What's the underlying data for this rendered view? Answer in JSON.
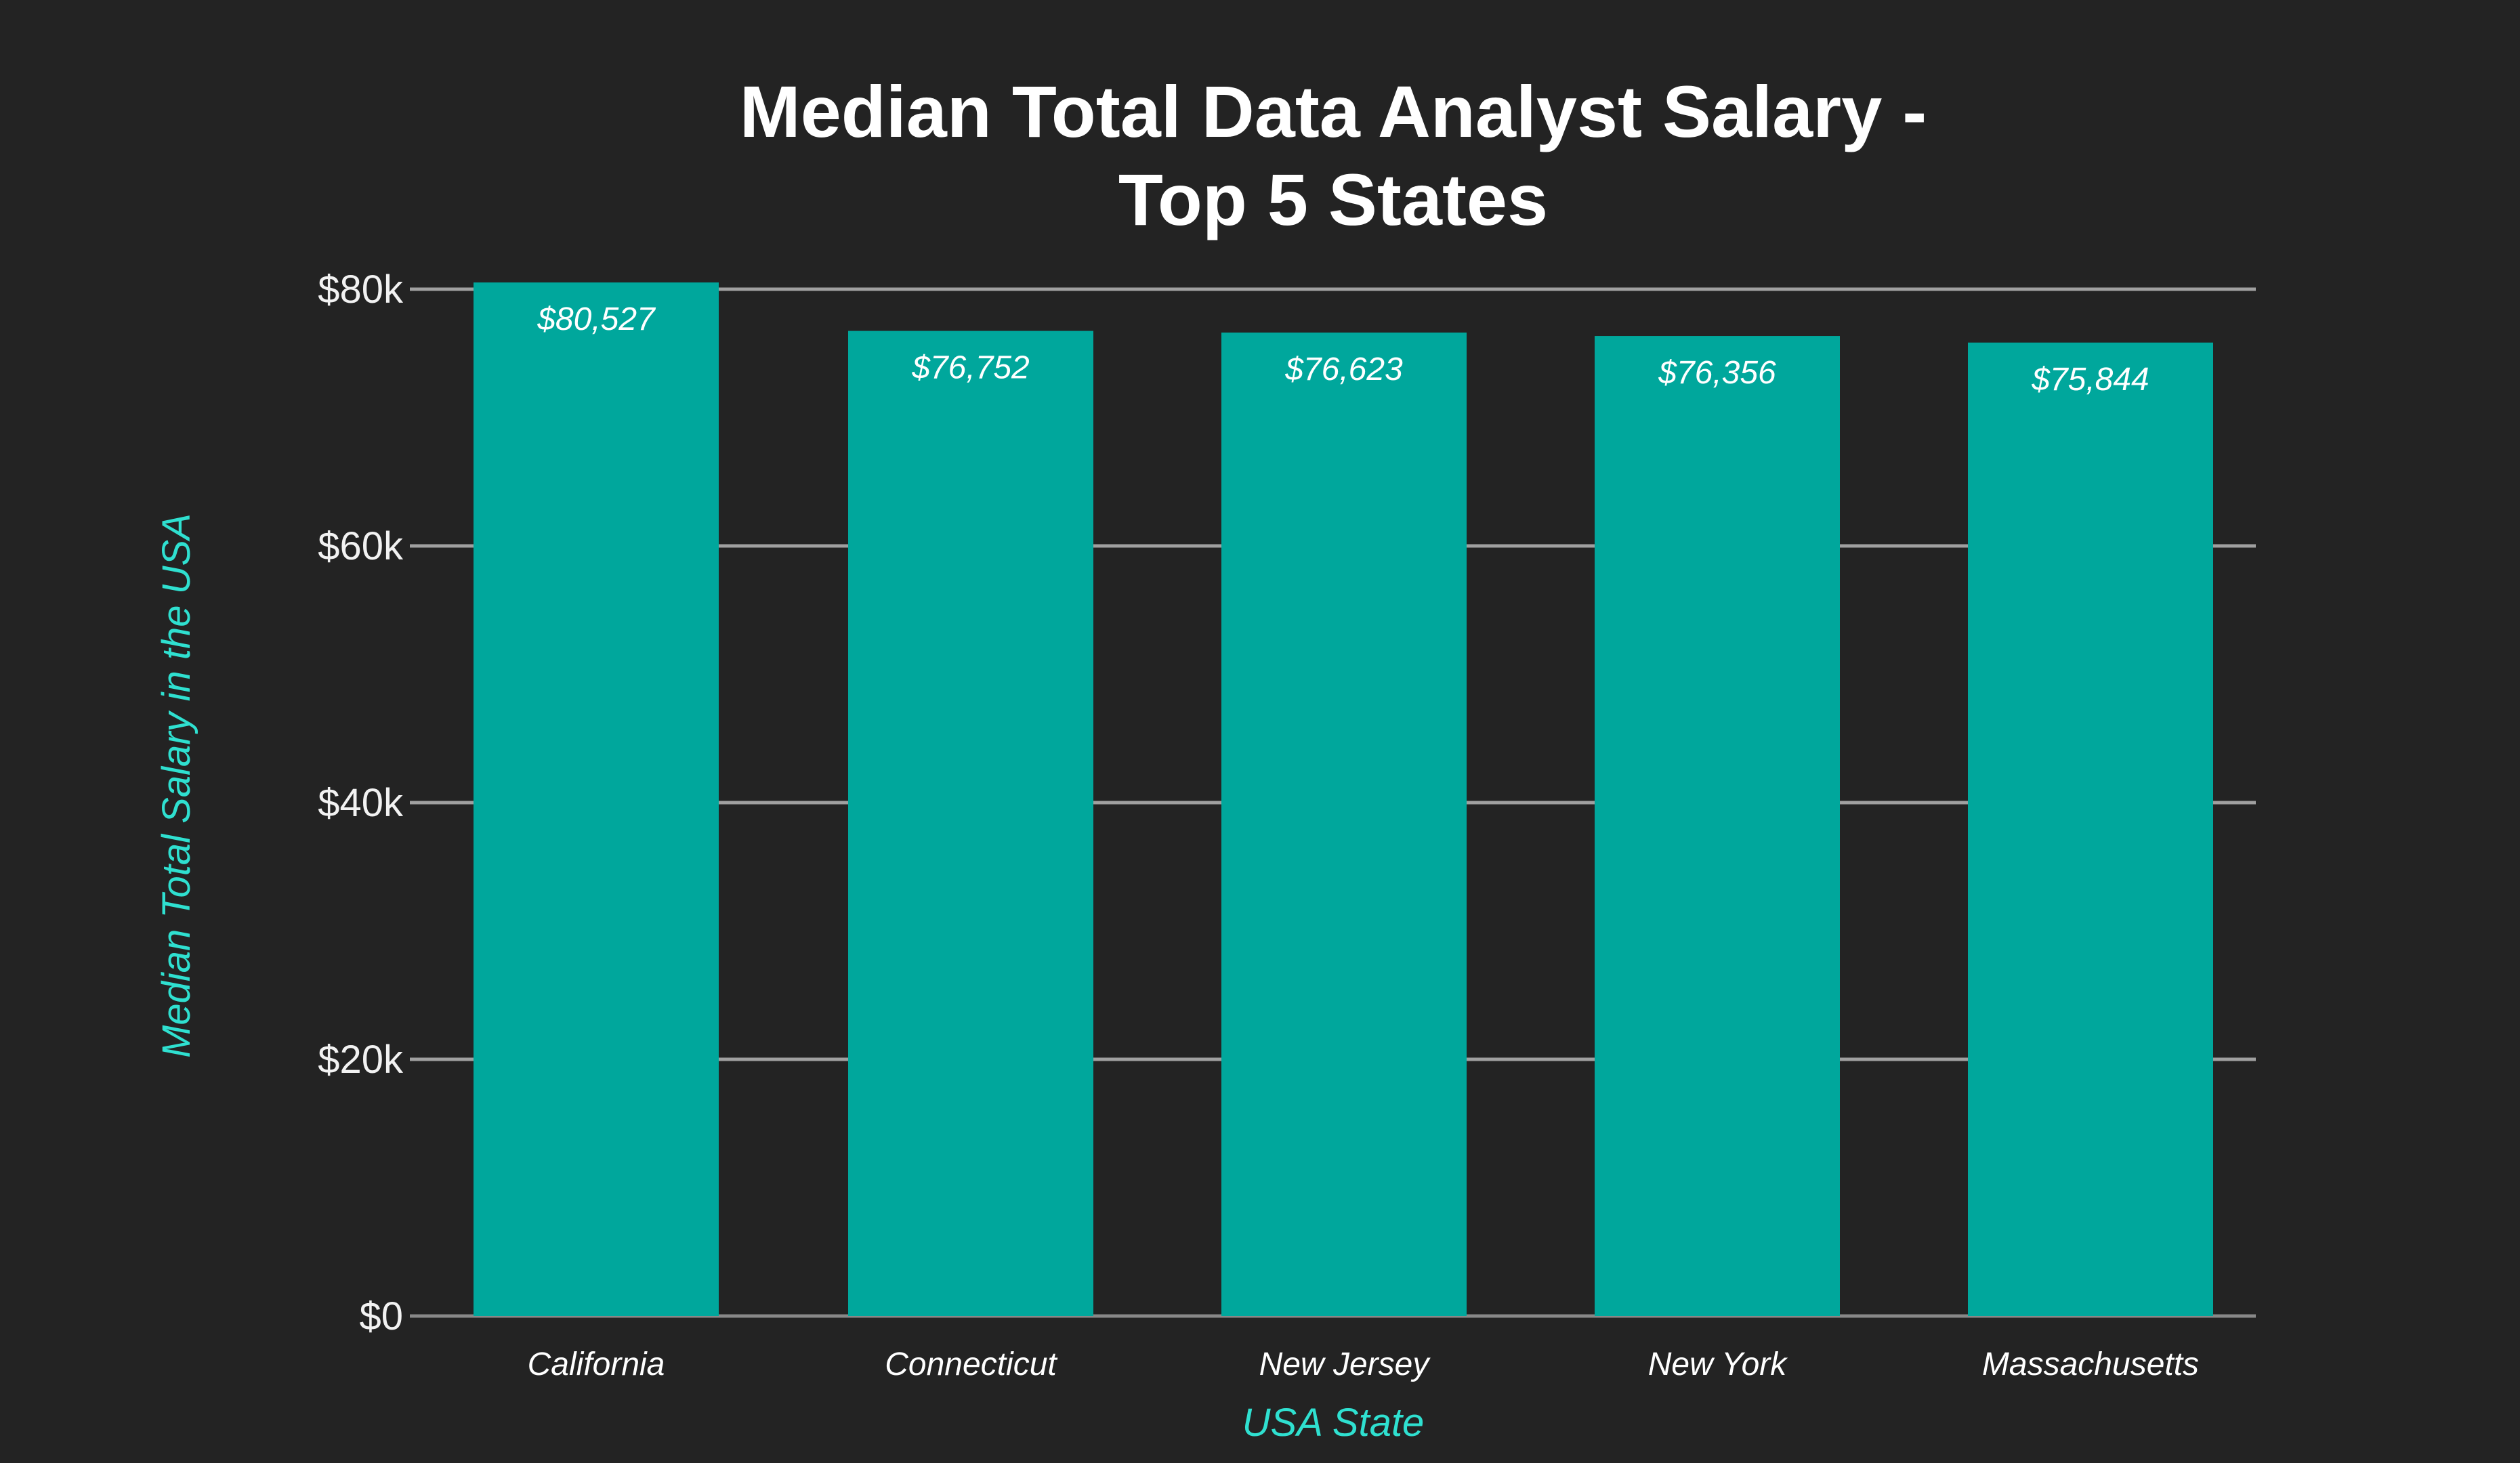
{
  "chart_data": {
    "type": "bar",
    "title": "Median Total Data Analyst Salary - Top 5 States",
    "title_lines": [
      "Median Total Data Analyst Salary -",
      "Top 5 States"
    ],
    "xlabel": "USA State",
    "ylabel": "Median Total Salary in the USA",
    "categories": [
      "California",
      "Connecticut",
      "New Jersey",
      "New York",
      "Massachusetts"
    ],
    "values": [
      80527,
      76752,
      76623,
      76356,
      75844
    ],
    "value_labels": [
      "$80,527",
      "$76,752",
      "$76,623",
      "$76,356",
      "$75,844"
    ],
    "ylim": [
      0,
      80000
    ],
    "yticks": [
      0,
      20000,
      40000,
      60000,
      80000
    ],
    "ytick_labels": [
      "$0",
      "$20k",
      "$40k",
      "$60k",
      "$80k"
    ],
    "grid": true,
    "colors": {
      "background": "#232323",
      "bar": "#00a79c",
      "grid": "#a0a0a0",
      "axis_title": "#2fe0d0"
    }
  }
}
